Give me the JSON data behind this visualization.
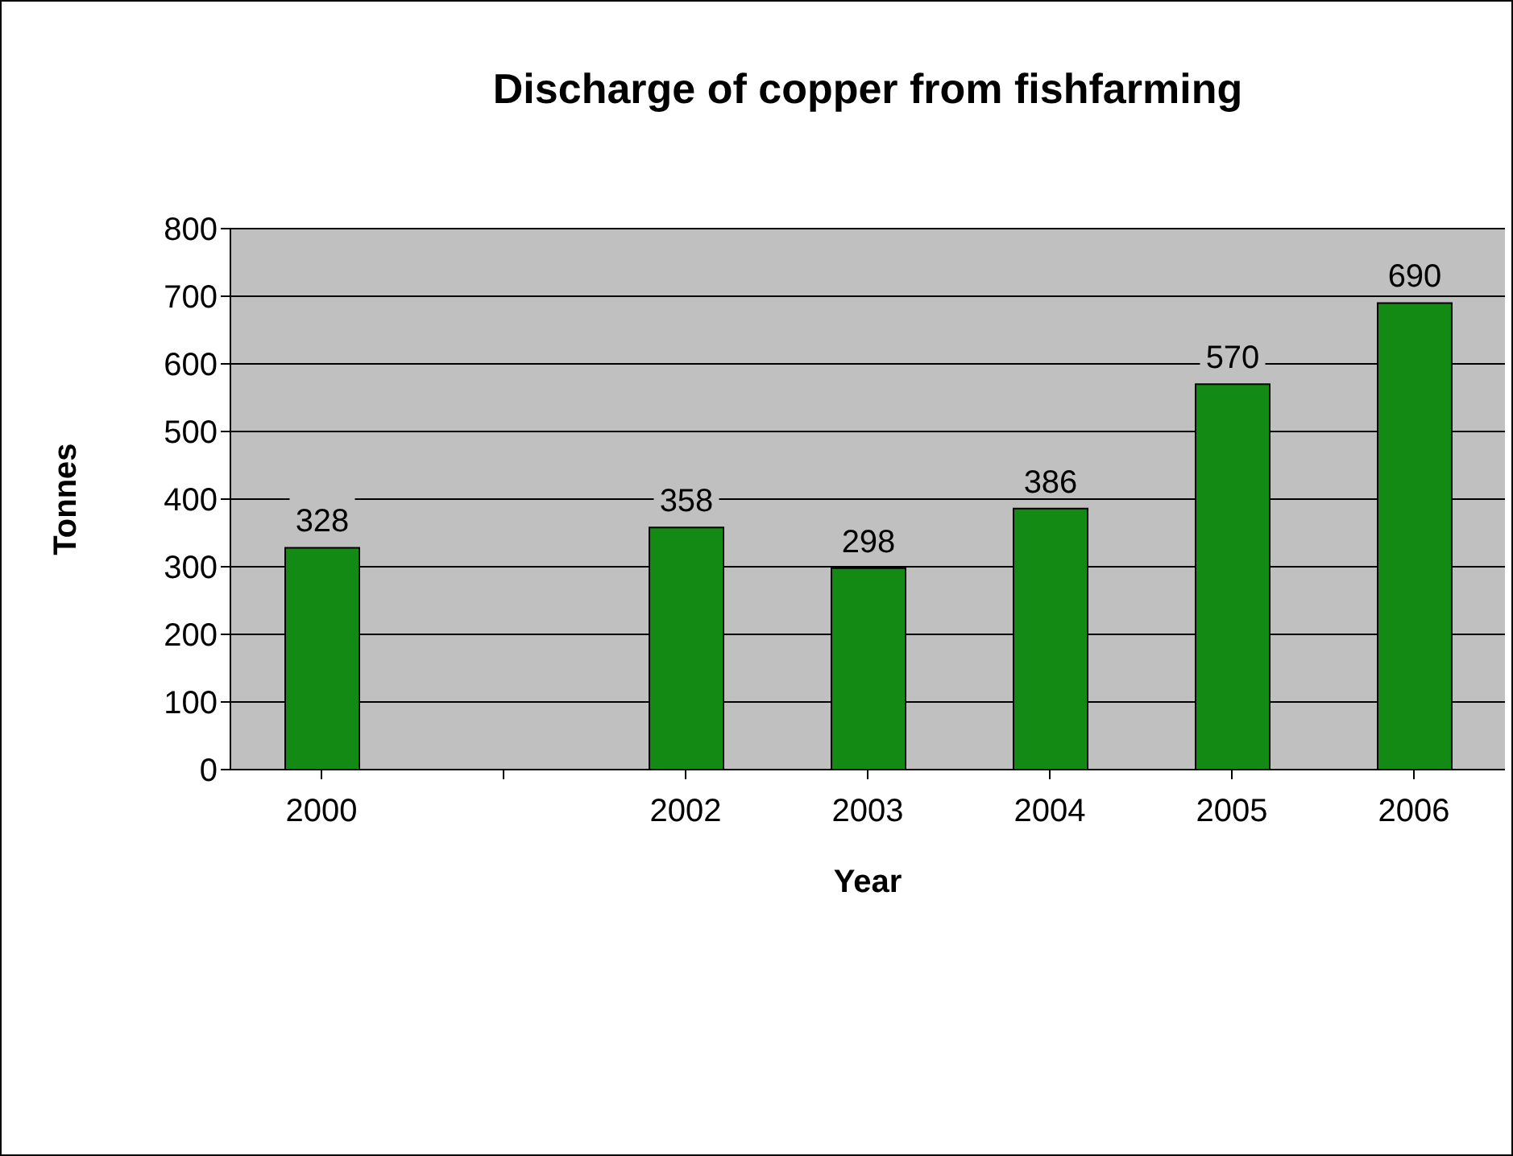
{
  "chart_data": {
    "type": "bar",
    "title": "Discharge of copper from fishfarming",
    "xlabel": "Year",
    "ylabel": "Tonnes",
    "categories": [
      "2000",
      null,
      "2002",
      "2003",
      "2004",
      "2005",
      "2006"
    ],
    "values": [
      328,
      null,
      358,
      298,
      386,
      570,
      690
    ],
    "color": "#138a13",
    "ylim": [
      0,
      800
    ],
    "yticks": [
      0,
      100,
      200,
      300,
      400,
      500,
      600,
      700,
      800
    ],
    "grid": "y",
    "data_labels": true
  }
}
